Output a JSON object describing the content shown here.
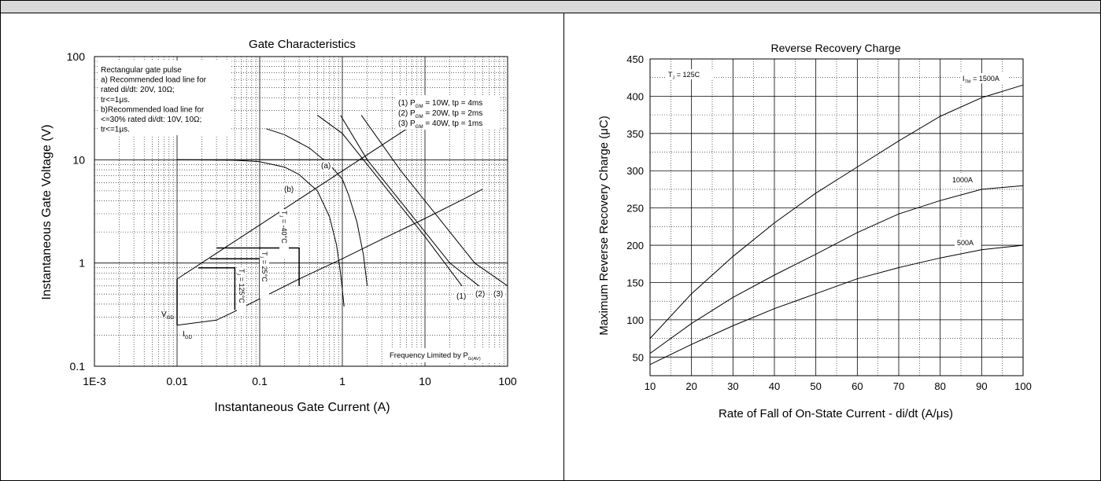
{
  "chart_data": [
    {
      "type": "line",
      "title": "Gate Characteristics",
      "xlabel": "Instantaneous Gate Current (A)",
      "ylabel": "Instantaneous Gate Voltage (V)",
      "x_scale": "log",
      "y_scale": "log",
      "xlim": [
        0.001,
        100
      ],
      "ylim": [
        0.1,
        100
      ],
      "x_ticks": [
        0.001,
        0.01,
        0.1,
        1,
        10,
        100
      ],
      "x_tick_labels": [
        "1E-3",
        "0.01",
        "0.1",
        "1",
        "10",
        "100"
      ],
      "y_ticks": [
        0.1,
        1,
        10,
        100
      ],
      "y_tick_labels": [
        "0.1",
        "1",
        "10",
        "100"
      ],
      "grid": true,
      "note_lines": [
        "Rectangular gate pulse",
        "a) Recommended load line for",
        "rated di/dt: 20V, 10Ω;",
        "tr<=1μs.",
        "b)Recommended load line for",
        "<=30% rated di/dt: 10V, 10Ω;",
        "tr<=1μs."
      ],
      "legend_lines": [
        {
          "prefix": "(1) P",
          "sub": "GM",
          "rest": " = 10W, tp = 4ms"
        },
        {
          "prefix": "(2) P",
          "sub": "GM",
          "rest": " = 20W, tp = 2ms"
        },
        {
          "prefix": "(3) P",
          "sub": "GM",
          "rest": " = 40W, tp = 1ms"
        }
      ],
      "footer": {
        "prefix": "Frequency Limited by P",
        "sub": "G(AV)"
      },
      "annotations": {
        "a": "(a)",
        "b": "(b)",
        "c1": "(1)",
        "c2": "(2)",
        "c3": "(3)",
        "vgd": {
          "main": "V",
          "sub": "GD"
        },
        "igd": {
          "main": "I",
          "sub": "GD"
        },
        "tj_m40": {
          "prefix": "T",
          "sub": "J",
          "rest": " = -40°C"
        },
        "tj_25": {
          "prefix": "T",
          "sub": "J",
          "rest": " = 25°C"
        },
        "tj_125": {
          "prefix": "T",
          "sub": "J",
          "rest": " = 125°C"
        }
      },
      "series": [
        {
          "id": "load_line_a",
          "x": [
            0.01,
            2
          ],
          "y": [
            10,
            10
          ]
        },
        {
          "id": "load_line_b",
          "x": [
            0.12,
            0.2,
            0.4,
            0.7,
            1.0,
            1.2,
            1.5,
            1.8,
            2.0
          ],
          "y": [
            20,
            17.5,
            13,
            9,
            6.5,
            4.5,
            2.5,
            1.2,
            0.6
          ]
        },
        {
          "id": "curve_b",
          "x": [
            0.01,
            0.05,
            0.1,
            0.2,
            0.3,
            0.5,
            0.7,
            0.85,
            0.95,
            1.0,
            1.05
          ],
          "y": [
            10,
            9.9,
            9.6,
            8.5,
            7.2,
            5,
            2.8,
            1.5,
            0.8,
            0.55,
            0.38
          ]
        },
        {
          "id": "iv_upper",
          "x": [
            0.01,
            10
          ],
          "y": [
            0.7,
            26
          ]
        },
        {
          "id": "iv_lower",
          "x": [
            0.01,
            0.03,
            0.05,
            0.1,
            0.3,
            1,
            3,
            10,
            30,
            50
          ],
          "y": [
            0.25,
            0.28,
            0.34,
            0.45,
            0.7,
            1.1,
            1.7,
            2.7,
            4.2,
            5.2
          ]
        },
        {
          "id": "p1_10W",
          "x": [
            0.5,
            1,
            2,
            5,
            10,
            28
          ],
          "y": [
            27,
            18,
            9,
            3.6,
            1.8,
            0.6
          ]
        },
        {
          "id": "p2_20W",
          "x": [
            0.95,
            2,
            5,
            10,
            20,
            45
          ],
          "y": [
            27,
            10,
            4,
            2,
            1,
            0.6
          ]
        },
        {
          "id": "p3_40W",
          "x": [
            1.7,
            5,
            10,
            20,
            40,
            100
          ],
          "y": [
            27,
            8,
            4,
            2,
            1,
            0.6
          ]
        },
        {
          "id": "vgd_line",
          "x": [
            0.01,
            0.01
          ],
          "y": [
            0.25,
            0.7
          ]
        },
        {
          "id": "tj_125_box",
          "x": [
            0.018,
            0.05,
            0.05
          ],
          "y": [
            0.9,
            0.9,
            0.35
          ]
        },
        {
          "id": "tj_25_box",
          "x": [
            0.025,
            0.1,
            0.1
          ],
          "y": [
            1.1,
            1.1,
            0.45
          ]
        },
        {
          "id": "tj_m40_box",
          "x": [
            0.03,
            0.3,
            0.3
          ],
          "y": [
            1.4,
            1.4,
            0.6
          ]
        }
      ]
    },
    {
      "type": "line",
      "title": "Reverse Recovery Charge",
      "xlabel": "Rate of Fall of On-State Current - di/dt (A/μs)",
      "ylabel": "Maximum Reverse Recovery Charge (μC)",
      "xlim": [
        10,
        100
      ],
      "ylim": [
        25,
        450
      ],
      "x_ticks": [
        10,
        20,
        30,
        40,
        50,
        60,
        70,
        80,
        90,
        100
      ],
      "y_ticks": [
        50,
        100,
        150,
        200,
        250,
        300,
        350,
        400,
        450
      ],
      "grid": true,
      "tj_label": {
        "prefix": "T",
        "sub": "J",
        "rest": " = 125C"
      },
      "series": [
        {
          "name": {
            "prefix": "I",
            "sub": "TM",
            "rest": " = 1500A"
          },
          "x": [
            10,
            20,
            30,
            40,
            50,
            60,
            70,
            80,
            90,
            100
          ],
          "y": [
            75,
            135,
            185,
            230,
            270,
            305,
            340,
            373,
            398,
            415
          ]
        },
        {
          "name": {
            "prefix": "",
            "sub": "",
            "rest": "1000A"
          },
          "x": [
            10,
            20,
            30,
            40,
            50,
            60,
            70,
            80,
            90,
            100
          ],
          "y": [
            55,
            95,
            130,
            160,
            188,
            217,
            242,
            260,
            275,
            280
          ]
        },
        {
          "name": {
            "prefix": "",
            "sub": "",
            "rest": "500A"
          },
          "x": [
            10,
            20,
            30,
            40,
            50,
            60,
            70,
            80,
            90,
            100
          ],
          "y": [
            40,
            67,
            92,
            115,
            135,
            155,
            170,
            183,
            194,
            200
          ]
        }
      ]
    }
  ]
}
